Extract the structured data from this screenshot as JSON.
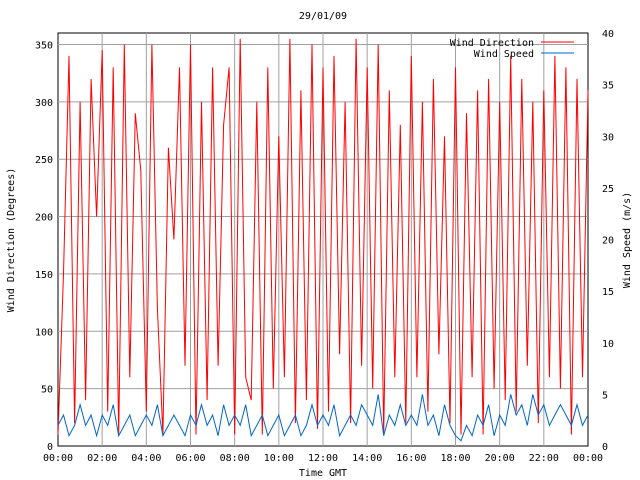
{
  "chart_data": {
    "type": "line",
    "title": "29/01/09",
    "xlabel": "Time GMT",
    "ylabel_left": "Wind Direction (Degrees)",
    "ylabel_right": "Wind Speed (m/s)",
    "xlim": [
      0,
      24
    ],
    "ylim_left": [
      0,
      360
    ],
    "ylim_right": [
      0,
      40
    ],
    "x_ticks": [
      "00:00",
      "02:00",
      "04:00",
      "06:00",
      "08:00",
      "10:00",
      "12:00",
      "14:00",
      "16:00",
      "18:00",
      "20:00",
      "22:00",
      "00:00"
    ],
    "y_ticks_left": [
      "0",
      "50",
      "100",
      "150",
      "200",
      "250",
      "300",
      "350"
    ],
    "y_ticks_right": [
      "0",
      "5",
      "10",
      "15",
      "20",
      "25",
      "30",
      "35",
      "40"
    ],
    "grid": true,
    "legend_position": "top-right",
    "series": [
      {
        "name": "Wind Direction",
        "axis": "left",
        "color": "#ff0000",
        "x": [
          0,
          0.25,
          0.5,
          0.75,
          1,
          1.25,
          1.5,
          1.75,
          2,
          2.25,
          2.5,
          2.75,
          3,
          3.25,
          3.5,
          3.75,
          4,
          4.25,
          4.5,
          4.75,
          5,
          5.25,
          5.5,
          5.75,
          6,
          6.25,
          6.5,
          6.75,
          7,
          7.25,
          7.5,
          7.75,
          8,
          8.25,
          8.5,
          8.75,
          9,
          9.25,
          9.5,
          9.75,
          10,
          10.25,
          10.5,
          10.75,
          11,
          11.25,
          11.5,
          11.75,
          12,
          12.25,
          12.5,
          12.75,
          13,
          13.25,
          13.5,
          13.75,
          14,
          14.25,
          14.5,
          14.75,
          15,
          15.25,
          15.5,
          15.75,
          16,
          16.25,
          16.5,
          16.75,
          17,
          17.25,
          17.5,
          17.75,
          18,
          18.25,
          18.5,
          18.75,
          19,
          19.25,
          19.5,
          19.75,
          20,
          20.25,
          20.5,
          20.75,
          21,
          21.25,
          21.5,
          21.75,
          22,
          22.25,
          22.5,
          22.75,
          23,
          23.25,
          23.5,
          23.75,
          24
        ],
        "values": [
          10,
          150,
          340,
          20,
          300,
          40,
          320,
          200,
          345,
          30,
          330,
          10,
          350,
          60,
          290,
          240,
          30,
          350,
          120,
          10,
          260,
          180,
          330,
          70,
          350,
          10,
          300,
          40,
          330,
          70,
          280,
          330,
          10,
          355,
          60,
          40,
          300,
          10,
          330,
          50,
          270,
          60,
          355,
          20,
          310,
          40,
          350,
          15,
          330,
          30,
          340,
          80,
          300,
          20,
          355,
          70,
          330,
          50,
          350,
          10,
          310,
          60,
          280,
          20,
          340,
          60,
          300,
          30,
          320,
          80,
          270,
          20,
          330,
          10,
          290,
          60,
          310,
          10,
          320,
          50,
          300,
          40,
          340,
          30,
          320,
          70,
          300,
          20,
          310,
          60,
          340,
          50,
          330,
          10,
          320,
          60,
          310
        ]
      },
      {
        "name": "Wind Speed",
        "axis": "right",
        "color": "#0066cc",
        "x": [
          0,
          0.25,
          0.5,
          0.75,
          1,
          1.25,
          1.5,
          1.75,
          2,
          2.25,
          2.5,
          2.75,
          3,
          3.25,
          3.5,
          3.75,
          4,
          4.25,
          4.5,
          4.75,
          5,
          5.25,
          5.5,
          5.75,
          6,
          6.25,
          6.5,
          6.75,
          7,
          7.25,
          7.5,
          7.75,
          8,
          8.25,
          8.5,
          8.75,
          9,
          9.25,
          9.5,
          9.75,
          10,
          10.25,
          10.5,
          10.75,
          11,
          11.25,
          11.5,
          11.75,
          12,
          12.25,
          12.5,
          12.75,
          13,
          13.25,
          13.5,
          13.75,
          14,
          14.25,
          14.5,
          14.75,
          15,
          15.25,
          15.5,
          15.75,
          16,
          16.25,
          16.5,
          16.75,
          17,
          17.25,
          17.5,
          17.75,
          18,
          18.25,
          18.5,
          18.75,
          19,
          19.25,
          19.5,
          19.75,
          20,
          20.25,
          20.5,
          20.75,
          21,
          21.25,
          21.5,
          21.75,
          22,
          22.25,
          22.5,
          22.75,
          23,
          23.25,
          23.5,
          23.75,
          24
        ],
        "values": [
          2,
          3,
          1,
          2,
          4,
          2,
          3,
          1,
          3,
          2,
          4,
          1,
          2,
          3,
          1,
          2,
          3,
          2,
          4,
          1,
          2,
          3,
          2,
          1,
          3,
          2,
          4,
          2,
          3,
          1,
          4,
          2,
          3,
          2,
          4,
          1,
          2,
          3,
          1,
          2,
          3,
          1,
          2,
          3,
          1,
          2,
          4,
          2,
          3,
          2,
          4,
          1,
          2,
          3,
          2,
          4,
          3,
          2,
          5,
          1,
          3,
          2,
          4,
          2,
          3,
          2,
          5,
          2,
          3,
          1,
          4,
          2,
          1,
          0.5,
          2,
          1,
          3,
          2,
          4,
          1,
          3,
          2,
          5,
          3,
          4,
          2,
          5,
          3,
          4,
          2,
          3,
          4,
          3,
          2,
          4,
          2,
          3
        ]
      }
    ]
  }
}
